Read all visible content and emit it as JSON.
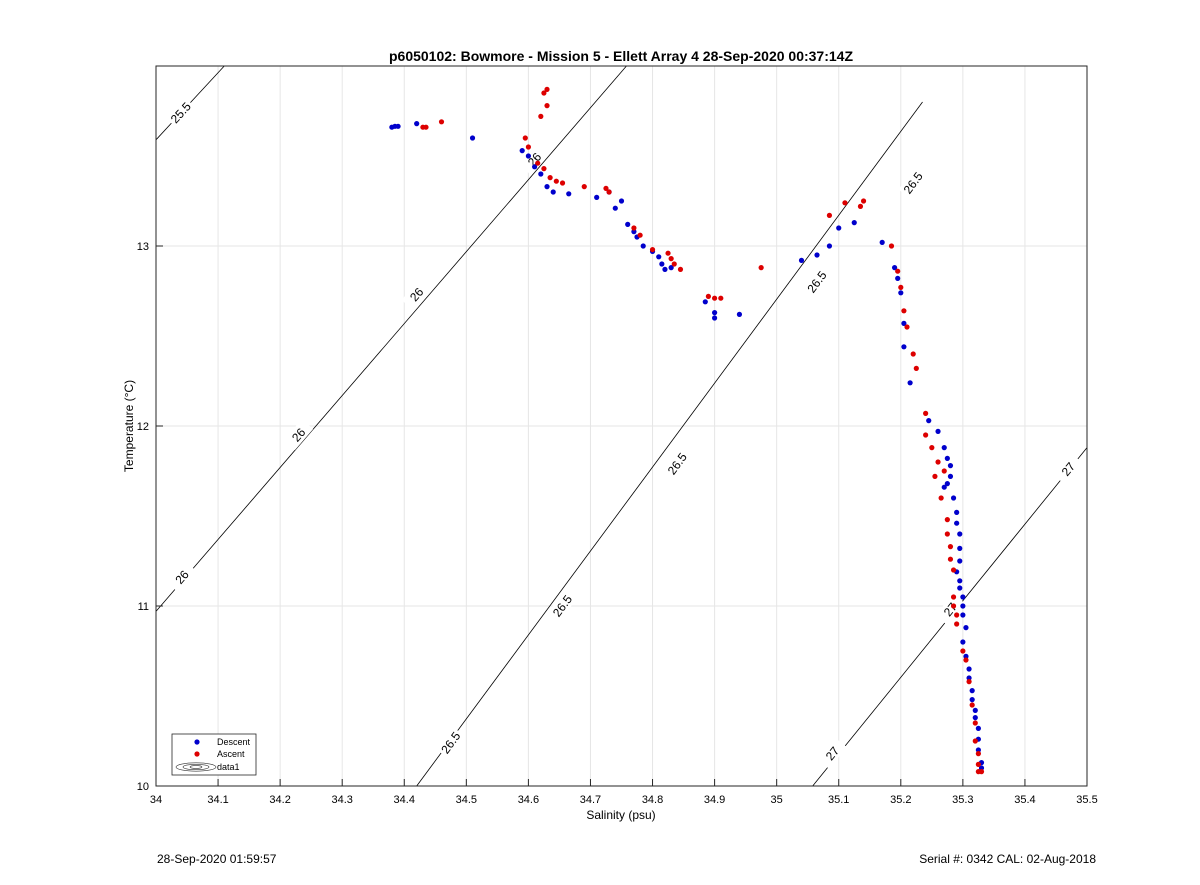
{
  "footer": {
    "timestamp": "28-Sep-2020 01:59:57",
    "serial": "Serial #: 0342  CAL: 02-Aug-2018"
  },
  "colors": {
    "descent": "#0000cc",
    "ascent": "#dd0000",
    "contour": "#000000",
    "grid": "#e6e6e6"
  },
  "chart_data": {
    "type": "scatter",
    "title": "p6050102: Bowmore - Mission 5 - Ellett Array 4 28-Sep-2020 00:37:14Z",
    "xlabel": "Salinity (psu)",
    "ylabel": "Temperature (°C)",
    "xlim": [
      34,
      35.5
    ],
    "ylim": [
      10,
      14
    ],
    "xticks": [
      "34",
      "34.1",
      "34.2",
      "34.3",
      "34.4",
      "34.5",
      "34.6",
      "34.7",
      "34.8",
      "34.9",
      "35",
      "35.1",
      "35.2",
      "35.3",
      "35.4",
      "35.5"
    ],
    "yticks": [
      "10",
      "11",
      "12",
      "13"
    ],
    "grid": true,
    "legend": {
      "placement": "bottom-left",
      "entries": [
        "Descent",
        "Ascent",
        "data1"
      ]
    },
    "contours": [
      {
        "level": "25.5",
        "points": [
          [
            34.0,
            13.59
          ],
          [
            34.11,
            14.0
          ]
        ],
        "label_at": [
          [
            34.04,
            13.74
          ]
        ]
      },
      {
        "level": "26",
        "points": [
          [
            34.0,
            10.97
          ],
          [
            34.758,
            14.0
          ]
        ],
        "label_at": [
          [
            34.042,
            11.16
          ],
          [
            34.23,
            11.95
          ],
          [
            34.42,
            12.73
          ],
          [
            34.61,
            13.48
          ]
        ]
      },
      {
        "level": "26.5",
        "points": [
          [
            34.42,
            10.0
          ],
          [
            35.235,
            13.8
          ]
        ],
        "label_at": [
          [
            34.475,
            10.24
          ],
          [
            34.655,
            11.0
          ],
          [
            34.84,
            11.79
          ],
          [
            35.065,
            12.8
          ],
          [
            35.22,
            13.35
          ]
        ]
      },
      {
        "level": "27",
        "points": [
          [
            35.058,
            10.0
          ],
          [
            35.5,
            11.88
          ]
        ],
        "label_at": [
          [
            35.09,
            10.18
          ],
          [
            35.28,
            10.98
          ],
          [
            35.47,
            11.76
          ]
        ]
      }
    ],
    "series": [
      {
        "name": "Descent",
        "points": [
          [
            34.38,
            13.66
          ],
          [
            34.385,
            13.665
          ],
          [
            34.39,
            13.665
          ],
          [
            34.42,
            13.68
          ],
          [
            34.51,
            13.6
          ],
          [
            34.59,
            13.53
          ],
          [
            34.6,
            13.5
          ],
          [
            34.61,
            13.44
          ],
          [
            34.62,
            13.4
          ],
          [
            34.63,
            13.33
          ],
          [
            34.64,
            13.3
          ],
          [
            34.665,
            13.29
          ],
          [
            34.71,
            13.27
          ],
          [
            34.73,
            13.3
          ],
          [
            34.75,
            13.25
          ],
          [
            34.74,
            13.21
          ],
          [
            34.76,
            13.12
          ],
          [
            34.77,
            13.08
          ],
          [
            34.775,
            13.05
          ],
          [
            34.785,
            13.0
          ],
          [
            34.8,
            12.97
          ],
          [
            34.81,
            12.94
          ],
          [
            34.815,
            12.9
          ],
          [
            34.82,
            12.87
          ],
          [
            34.83,
            12.88
          ],
          [
            34.885,
            12.69
          ],
          [
            34.9,
            12.63
          ],
          [
            34.9,
            12.6
          ],
          [
            34.94,
            12.62
          ],
          [
            35.04,
            12.92
          ],
          [
            35.065,
            12.95
          ],
          [
            35.085,
            13.0
          ],
          [
            35.1,
            13.1
          ],
          [
            35.125,
            13.13
          ],
          [
            35.17,
            13.02
          ],
          [
            35.19,
            12.88
          ],
          [
            35.195,
            12.82
          ],
          [
            35.2,
            12.74
          ],
          [
            35.205,
            12.57
          ],
          [
            35.205,
            12.44
          ],
          [
            35.215,
            12.24
          ],
          [
            35.245,
            12.03
          ],
          [
            35.26,
            11.97
          ],
          [
            35.27,
            11.88
          ],
          [
            35.275,
            11.82
          ],
          [
            35.28,
            11.78
          ],
          [
            35.28,
            11.72
          ],
          [
            35.275,
            11.68
          ],
          [
            35.27,
            11.66
          ],
          [
            35.285,
            11.6
          ],
          [
            35.29,
            11.52
          ],
          [
            35.29,
            11.46
          ],
          [
            35.295,
            11.4
          ],
          [
            35.295,
            11.32
          ],
          [
            35.295,
            11.25
          ],
          [
            35.29,
            11.19
          ],
          [
            35.295,
            11.14
          ],
          [
            35.295,
            11.1
          ],
          [
            35.3,
            11.05
          ],
          [
            35.3,
            11.0
          ],
          [
            35.3,
            10.95
          ],
          [
            35.305,
            10.88
          ],
          [
            35.3,
            10.8
          ],
          [
            35.305,
            10.72
          ],
          [
            35.31,
            10.65
          ],
          [
            35.31,
            10.6
          ],
          [
            35.315,
            10.53
          ],
          [
            35.315,
            10.48
          ],
          [
            35.32,
            10.42
          ],
          [
            35.32,
            10.38
          ],
          [
            35.325,
            10.32
          ],
          [
            35.325,
            10.26
          ],
          [
            35.325,
            10.2
          ],
          [
            35.33,
            10.13
          ],
          [
            35.33,
            10.1
          ]
        ]
      },
      {
        "name": "Ascent",
        "points": [
          [
            34.43,
            13.66
          ],
          [
            34.435,
            13.66
          ],
          [
            34.46,
            13.69
          ],
          [
            34.595,
            13.6
          ],
          [
            34.6,
            13.55
          ],
          [
            34.615,
            13.46
          ],
          [
            34.625,
            13.43
          ],
          [
            34.62,
            13.72
          ],
          [
            34.625,
            13.85
          ],
          [
            34.63,
            13.87
          ],
          [
            34.63,
            13.78
          ],
          [
            34.635,
            13.38
          ],
          [
            34.645,
            13.36
          ],
          [
            34.655,
            13.35
          ],
          [
            34.69,
            13.33
          ],
          [
            34.725,
            13.32
          ],
          [
            34.73,
            13.3
          ],
          [
            34.77,
            13.1
          ],
          [
            34.78,
            13.06
          ],
          [
            34.8,
            12.98
          ],
          [
            34.825,
            12.96
          ],
          [
            34.83,
            12.93
          ],
          [
            34.835,
            12.9
          ],
          [
            34.845,
            12.87
          ],
          [
            34.89,
            12.72
          ],
          [
            34.9,
            12.71
          ],
          [
            34.91,
            12.71
          ],
          [
            34.975,
            12.88
          ],
          [
            35.085,
            13.17
          ],
          [
            35.11,
            13.24
          ],
          [
            35.135,
            13.22
          ],
          [
            35.14,
            13.25
          ],
          [
            35.185,
            13.0
          ],
          [
            35.195,
            12.86
          ],
          [
            35.2,
            12.77
          ],
          [
            35.205,
            12.64
          ],
          [
            35.21,
            12.55
          ],
          [
            35.22,
            12.4
          ],
          [
            35.225,
            12.32
          ],
          [
            35.24,
            12.07
          ],
          [
            35.24,
            11.95
          ],
          [
            35.25,
            11.88
          ],
          [
            35.26,
            11.8
          ],
          [
            35.255,
            11.72
          ],
          [
            35.27,
            11.75
          ],
          [
            35.265,
            11.6
          ],
          [
            35.275,
            11.48
          ],
          [
            35.275,
            11.4
          ],
          [
            35.28,
            11.33
          ],
          [
            35.28,
            11.26
          ],
          [
            35.285,
            11.2
          ],
          [
            35.285,
            11.05
          ],
          [
            35.285,
            11.0
          ],
          [
            35.29,
            10.95
          ],
          [
            35.29,
            10.9
          ],
          [
            35.3,
            10.75
          ],
          [
            35.305,
            10.7
          ],
          [
            35.31,
            10.58
          ],
          [
            35.315,
            10.45
          ],
          [
            35.32,
            10.35
          ],
          [
            35.32,
            10.25
          ],
          [
            35.325,
            10.18
          ],
          [
            35.325,
            10.12
          ],
          [
            35.325,
            10.08
          ],
          [
            35.33,
            10.08
          ]
        ]
      }
    ]
  }
}
